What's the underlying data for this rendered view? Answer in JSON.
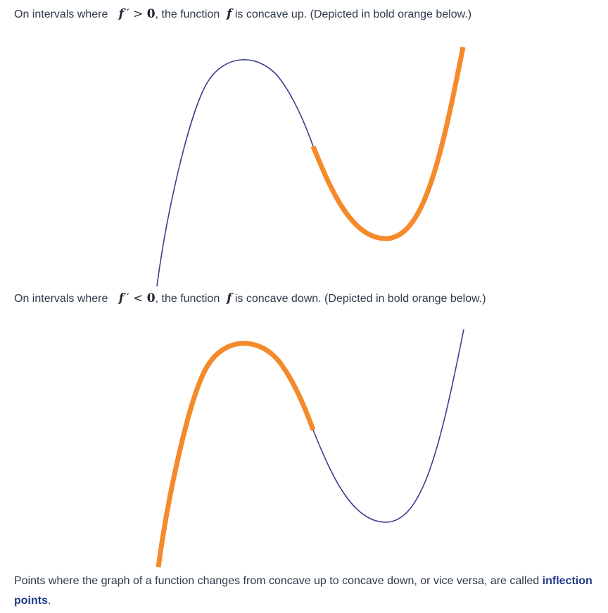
{
  "paragraph1": {
    "prefix": "On intervals where",
    "math_f": "f",
    "math_op": "′′ > ",
    "math_zero": "0",
    "middle": ", the function",
    "math_f2": "f",
    "suffix": "is concave up. (Depicted in bold orange below.)"
  },
  "paragraph2": {
    "prefix": "On intervals where",
    "math_f": "f",
    "math_op": "′′ < ",
    "math_zero": "0",
    "middle": ", the function",
    "math_f2": "f",
    "suffix": "is concave down. (Depicted in bold orange below.)"
  },
  "paragraph3": {
    "text_before": "Points where the graph of a function changes from concave up to concave down, or vice versa, are called ",
    "term": "inflection points",
    "text_after": "."
  },
  "colors": {
    "curve": "#3b3f8f",
    "highlight": "#f58a2b",
    "text": "#2f3a4a",
    "term": "#1f3a8a"
  }
}
